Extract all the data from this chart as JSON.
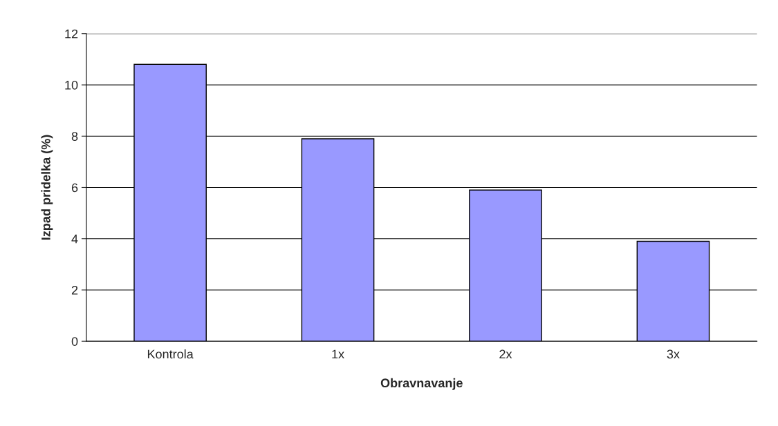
{
  "chart_data": {
    "type": "bar",
    "xlabel": "Obravnavanje",
    "ylabel": "Izpad pridelka (%)",
    "categories": [
      "Kontrola",
      "1x",
      "2x",
      "3x"
    ],
    "values": [
      10.8,
      7.9,
      5.9,
      3.9
    ],
    "color": "#9999ff",
    "ylim": [
      0,
      12
    ],
    "yticks": [
      0,
      2,
      4,
      6,
      8,
      10,
      12
    ],
    "grid": "y",
    "legend": false
  }
}
